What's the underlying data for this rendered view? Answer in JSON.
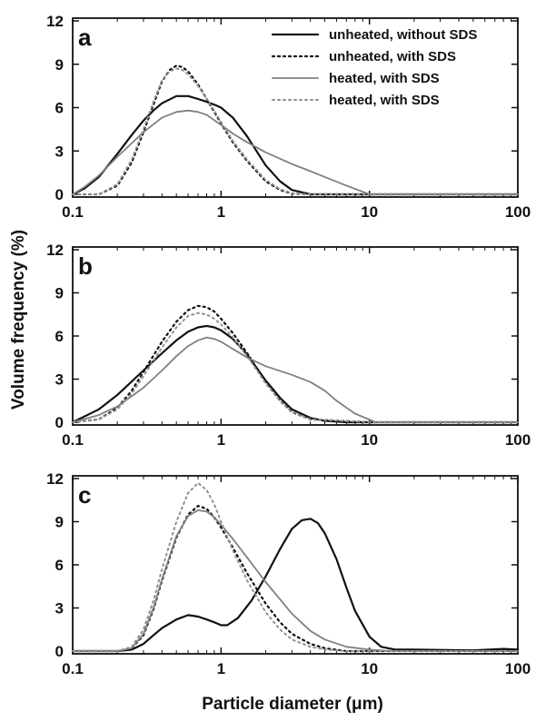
{
  "chart_data": {
    "type": "line",
    "xlabel": "Particle diameter (μm)",
    "ylabel": "Volume frequency (%)",
    "x_scale": "log",
    "xlim": [
      0.1,
      100
    ],
    "x_ticks": [
      0.1,
      1,
      10,
      100
    ],
    "x_tick_labels": [
      "0.1",
      "1",
      "10",
      "100"
    ],
    "ylim": [
      0,
      12
    ],
    "y_ticks": [
      0,
      3,
      6,
      9,
      12
    ],
    "y_tick_labels": [
      "0",
      "3",
      "6",
      "9",
      "12"
    ],
    "grid": false,
    "legend": {
      "placement": "top-right of panel a",
      "entries": [
        {
          "label": "unheated, without SDS",
          "color": "#111111",
          "style": "solid"
        },
        {
          "label": "unheated, with SDS",
          "color": "#111111",
          "style": "dotted"
        },
        {
          "label": "heated, with SDS",
          "color": "#808080",
          "style": "solid"
        },
        {
          "label": "heated, with SDS",
          "color": "#808080",
          "style": "dotted"
        }
      ]
    },
    "panels": [
      {
        "label": "a",
        "series": [
          {
            "x": [
              0.1,
              0.12,
              0.15,
              0.2,
              0.25,
              0.3,
              0.35,
              0.4,
              0.5,
              0.6,
              0.7,
              0.8,
              0.9,
              1.0,
              1.2,
              1.5,
              2.0,
              2.5,
              3.0,
              4.0,
              5.0,
              10,
              100
            ],
            "y": [
              0,
              0.4,
              1.2,
              2.8,
              4.1,
              5.1,
              5.8,
              6.3,
              6.8,
              6.8,
              6.6,
              6.4,
              6.2,
              6.0,
              5.3,
              4.0,
              2.0,
              0.9,
              0.3,
              0,
              0,
              0,
              0
            ]
          },
          {
            "x": [
              0.1,
              0.15,
              0.2,
              0.25,
              0.3,
              0.35,
              0.4,
              0.45,
              0.5,
              0.55,
              0.6,
              0.7,
              0.8,
              0.9,
              1.0,
              1.2,
              1.5,
              2.0,
              2.5,
              3.0,
              4.0,
              10,
              100
            ],
            "y": [
              0,
              0,
              0.6,
              2.2,
              4.3,
              6.2,
              7.8,
              8.6,
              8.9,
              8.8,
              8.5,
              7.6,
              6.6,
              5.7,
              4.9,
              3.6,
              2.3,
              0.9,
              0.3,
              0.05,
              0,
              0,
              0
            ]
          },
          {
            "x": [
              0.1,
              0.12,
              0.15,
              0.2,
              0.3,
              0.4,
              0.5,
              0.6,
              0.7,
              0.8,
              1.0,
              1.2,
              1.5,
              2.0,
              3.0,
              4.0,
              5.0,
              7.0,
              10,
              100
            ],
            "y": [
              0,
              0.5,
              1.3,
              2.6,
              4.3,
              5.3,
              5.7,
              5.8,
              5.7,
              5.5,
              4.8,
              4.2,
              3.6,
              2.9,
              2.1,
              1.6,
              1.2,
              0.6,
              0,
              0
            ]
          },
          {
            "x": [
              0.1,
              0.15,
              0.2,
              0.25,
              0.3,
              0.35,
              0.4,
              0.45,
              0.5,
              0.55,
              0.6,
              0.7,
              0.8,
              0.9,
              1.0,
              1.2,
              1.5,
              2.0,
              2.5,
              3.0,
              4.0,
              10,
              100
            ],
            "y": [
              0,
              0,
              0.7,
              2.4,
              4.5,
              6.4,
              7.9,
              8.5,
              8.7,
              8.6,
              8.3,
              7.5,
              6.6,
              5.8,
              5.0,
              3.7,
              2.4,
              1.0,
              0.35,
              0.08,
              0,
              0,
              0
            ]
          }
        ]
      },
      {
        "label": "b",
        "series": [
          {
            "x": [
              0.1,
              0.15,
              0.2,
              0.3,
              0.4,
              0.5,
              0.6,
              0.7,
              0.8,
              0.9,
              1.0,
              1.2,
              1.5,
              2.0,
              2.5,
              3.0,
              4.0,
              5.0,
              7.0,
              10,
              100
            ],
            "y": [
              0,
              0.9,
              1.9,
              3.6,
              4.8,
              5.7,
              6.3,
              6.6,
              6.7,
              6.6,
              6.4,
              5.8,
              4.7,
              2.9,
              1.7,
              0.9,
              0.3,
              0.1,
              0,
              0,
              0
            ]
          },
          {
            "x": [
              0.1,
              0.15,
              0.2,
              0.25,
              0.3,
              0.4,
              0.5,
              0.6,
              0.7,
              0.8,
              0.9,
              1.0,
              1.2,
              1.5,
              2.0,
              2.5,
              3.0,
              4.0,
              10,
              100
            ],
            "y": [
              0,
              0.2,
              1.0,
              2.2,
              3.5,
              5.6,
              7.0,
              7.8,
              8.1,
              8.0,
              7.7,
              7.2,
              6.2,
              4.8,
              2.8,
              1.5,
              0.7,
              0.2,
              0,
              0
            ]
          },
          {
            "x": [
              0.1,
              0.15,
              0.2,
              0.3,
              0.4,
              0.5,
              0.6,
              0.7,
              0.8,
              0.9,
              1.0,
              1.2,
              1.5,
              2.0,
              3.0,
              4.0,
              5.0,
              6.0,
              8.0,
              11,
              100
            ],
            "y": [
              0,
              0.5,
              1.1,
              2.4,
              3.6,
              4.6,
              5.3,
              5.7,
              5.9,
              5.8,
              5.6,
              5.1,
              4.5,
              3.9,
              3.3,
              2.8,
              2.2,
              1.5,
              0.6,
              0,
              0
            ]
          },
          {
            "x": [
              0.1,
              0.15,
              0.2,
              0.25,
              0.3,
              0.4,
              0.5,
              0.6,
              0.7,
              0.8,
              0.9,
              1.0,
              1.2,
              1.5,
              2.0,
              2.5,
              3.0,
              4.0,
              10,
              100
            ],
            "y": [
              0,
              0.2,
              0.9,
              2.0,
              3.2,
              5.2,
              6.6,
              7.4,
              7.6,
              7.5,
              7.2,
              6.8,
              5.9,
              4.6,
              2.7,
              1.5,
              0.7,
              0.2,
              0,
              0
            ]
          }
        ]
      },
      {
        "label": "c",
        "series": [
          {
            "x": [
              0.1,
              0.2,
              0.25,
              0.3,
              0.35,
              0.4,
              0.5,
              0.6,
              0.7,
              0.8,
              0.9,
              1.0,
              1.1,
              1.3,
              1.6,
              2.0,
              2.5,
              3.0,
              3.5,
              4.0,
              4.5,
              5.0,
              6.0,
              7.0,
              8.0,
              10,
              12,
              15,
              20,
              50,
              80,
              100
            ],
            "y": [
              0,
              0,
              0.1,
              0.5,
              1.1,
              1.6,
              2.2,
              2.5,
              2.4,
              2.2,
              2.0,
              1.8,
              1.8,
              2.3,
              3.5,
              5.2,
              7.1,
              8.5,
              9.1,
              9.2,
              8.9,
              8.2,
              6.4,
              4.4,
              2.8,
              1.0,
              0.3,
              0.1,
              0.1,
              0.05,
              0.15,
              0.1
            ]
          },
          {
            "x": [
              0.1,
              0.2,
              0.25,
              0.3,
              0.35,
              0.4,
              0.5,
              0.6,
              0.7,
              0.8,
              0.9,
              1.0,
              1.2,
              1.5,
              2.0,
              2.5,
              3.0,
              4.0,
              5.0,
              7.0,
              10,
              100
            ],
            "y": [
              0,
              0,
              0.2,
              1.1,
              2.9,
              4.9,
              7.9,
              9.5,
              10.1,
              9.9,
              9.3,
              8.6,
              7.2,
              5.4,
              3.3,
              2.0,
              1.2,
              0.5,
              0.2,
              0,
              0,
              0
            ]
          },
          {
            "x": [
              0.1,
              0.2,
              0.25,
              0.3,
              0.35,
              0.4,
              0.5,
              0.6,
              0.7,
              0.8,
              0.9,
              1.0,
              1.2,
              1.5,
              2.0,
              3.0,
              4.0,
              5.0,
              7.0,
              10,
              14,
              20,
              100
            ],
            "y": [
              0,
              0,
              0.2,
              1.2,
              3.0,
              5.0,
              8.0,
              9.4,
              9.8,
              9.7,
              9.3,
              8.8,
              7.8,
              6.5,
              4.8,
              2.6,
              1.4,
              0.8,
              0.3,
              0.1,
              0,
              0,
              0
            ]
          },
          {
            "x": [
              0.1,
              0.2,
              0.25,
              0.3,
              0.35,
              0.4,
              0.5,
              0.6,
              0.7,
              0.8,
              0.9,
              1.0,
              1.2,
              1.5,
              2.0,
              2.5,
              3.0,
              4.0,
              5.0,
              7.0,
              10,
              100
            ],
            "y": [
              0,
              0,
              0.3,
              1.5,
              3.5,
              5.7,
              9.0,
              11.0,
              11.7,
              11.2,
              10.2,
              9.0,
              7.0,
              4.9,
              2.7,
              1.5,
              0.8,
              0.3,
              0.1,
              0,
              0,
              0
            ]
          }
        ]
      }
    ]
  }
}
